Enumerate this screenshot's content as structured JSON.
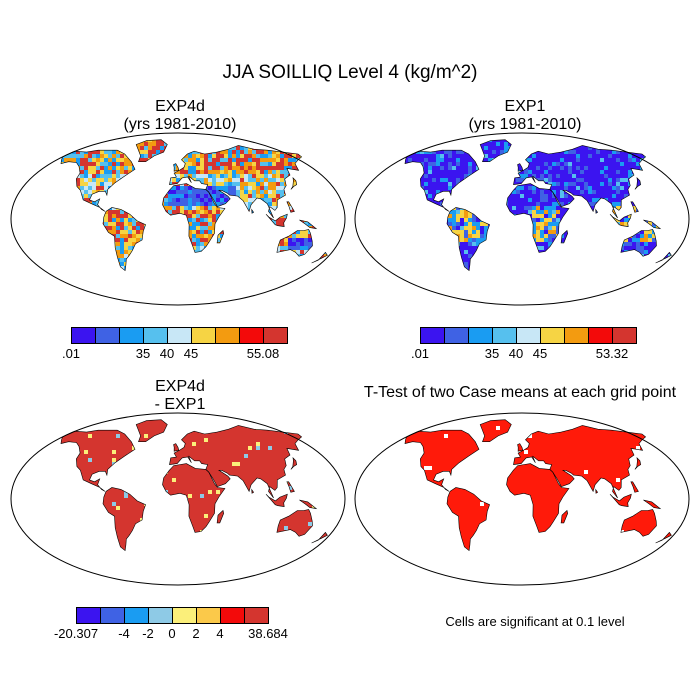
{
  "title": "JJA SOILLIQ Level 4 (kg/m^2)",
  "panels": [
    {
      "title_line1": "EXP4d",
      "title_line2": "(yrs 1981-2010)",
      "style": "mix_warm"
    },
    {
      "title_line1": "EXP1",
      "title_line2": "(yrs 1981-2010)",
      "style": "mostly_blue"
    },
    {
      "title_line1": "EXP4d",
      "title_line2": "- EXP1",
      "style": "diff_red"
    },
    {
      "title_line1": "T-Test of two Case means at each grid point",
      "title_line2": "",
      "style": "sig_red"
    }
  ],
  "colorbars": [
    {
      "name": "exp4d",
      "colors": [
        "#3b14f0",
        "#3f62e4",
        "#1a9cf2",
        "#56c0ee",
        "#c8e7f6",
        "#f6d444",
        "#f39b10",
        "#f30a0a",
        "#d4352f"
      ],
      "labels": [
        ".01",
        "35",
        "40",
        "45",
        "55.08"
      ]
    },
    {
      "name": "exp1",
      "colors": [
        "#3b14f0",
        "#3f62e4",
        "#1a9cf2",
        "#56c0ee",
        "#c8e7f6",
        "#f6d444",
        "#f39b10",
        "#f30a0a",
        "#d4352f"
      ],
      "labels": [
        ".01",
        "35",
        "40",
        "45",
        "53.32"
      ]
    },
    {
      "name": "diff",
      "colors": [
        "#3b14f0",
        "#3f62e4",
        "#1a9cf2",
        "#8ecae6",
        "#fbef7a",
        "#fbc94a",
        "#f30a0a",
        "#d4352f"
      ],
      "labels": [
        "-20.307",
        "-4",
        "-2",
        "0",
        "2",
        "4",
        "38.684"
      ]
    }
  ],
  "note": "Cells are significant at 0.1 level"
}
